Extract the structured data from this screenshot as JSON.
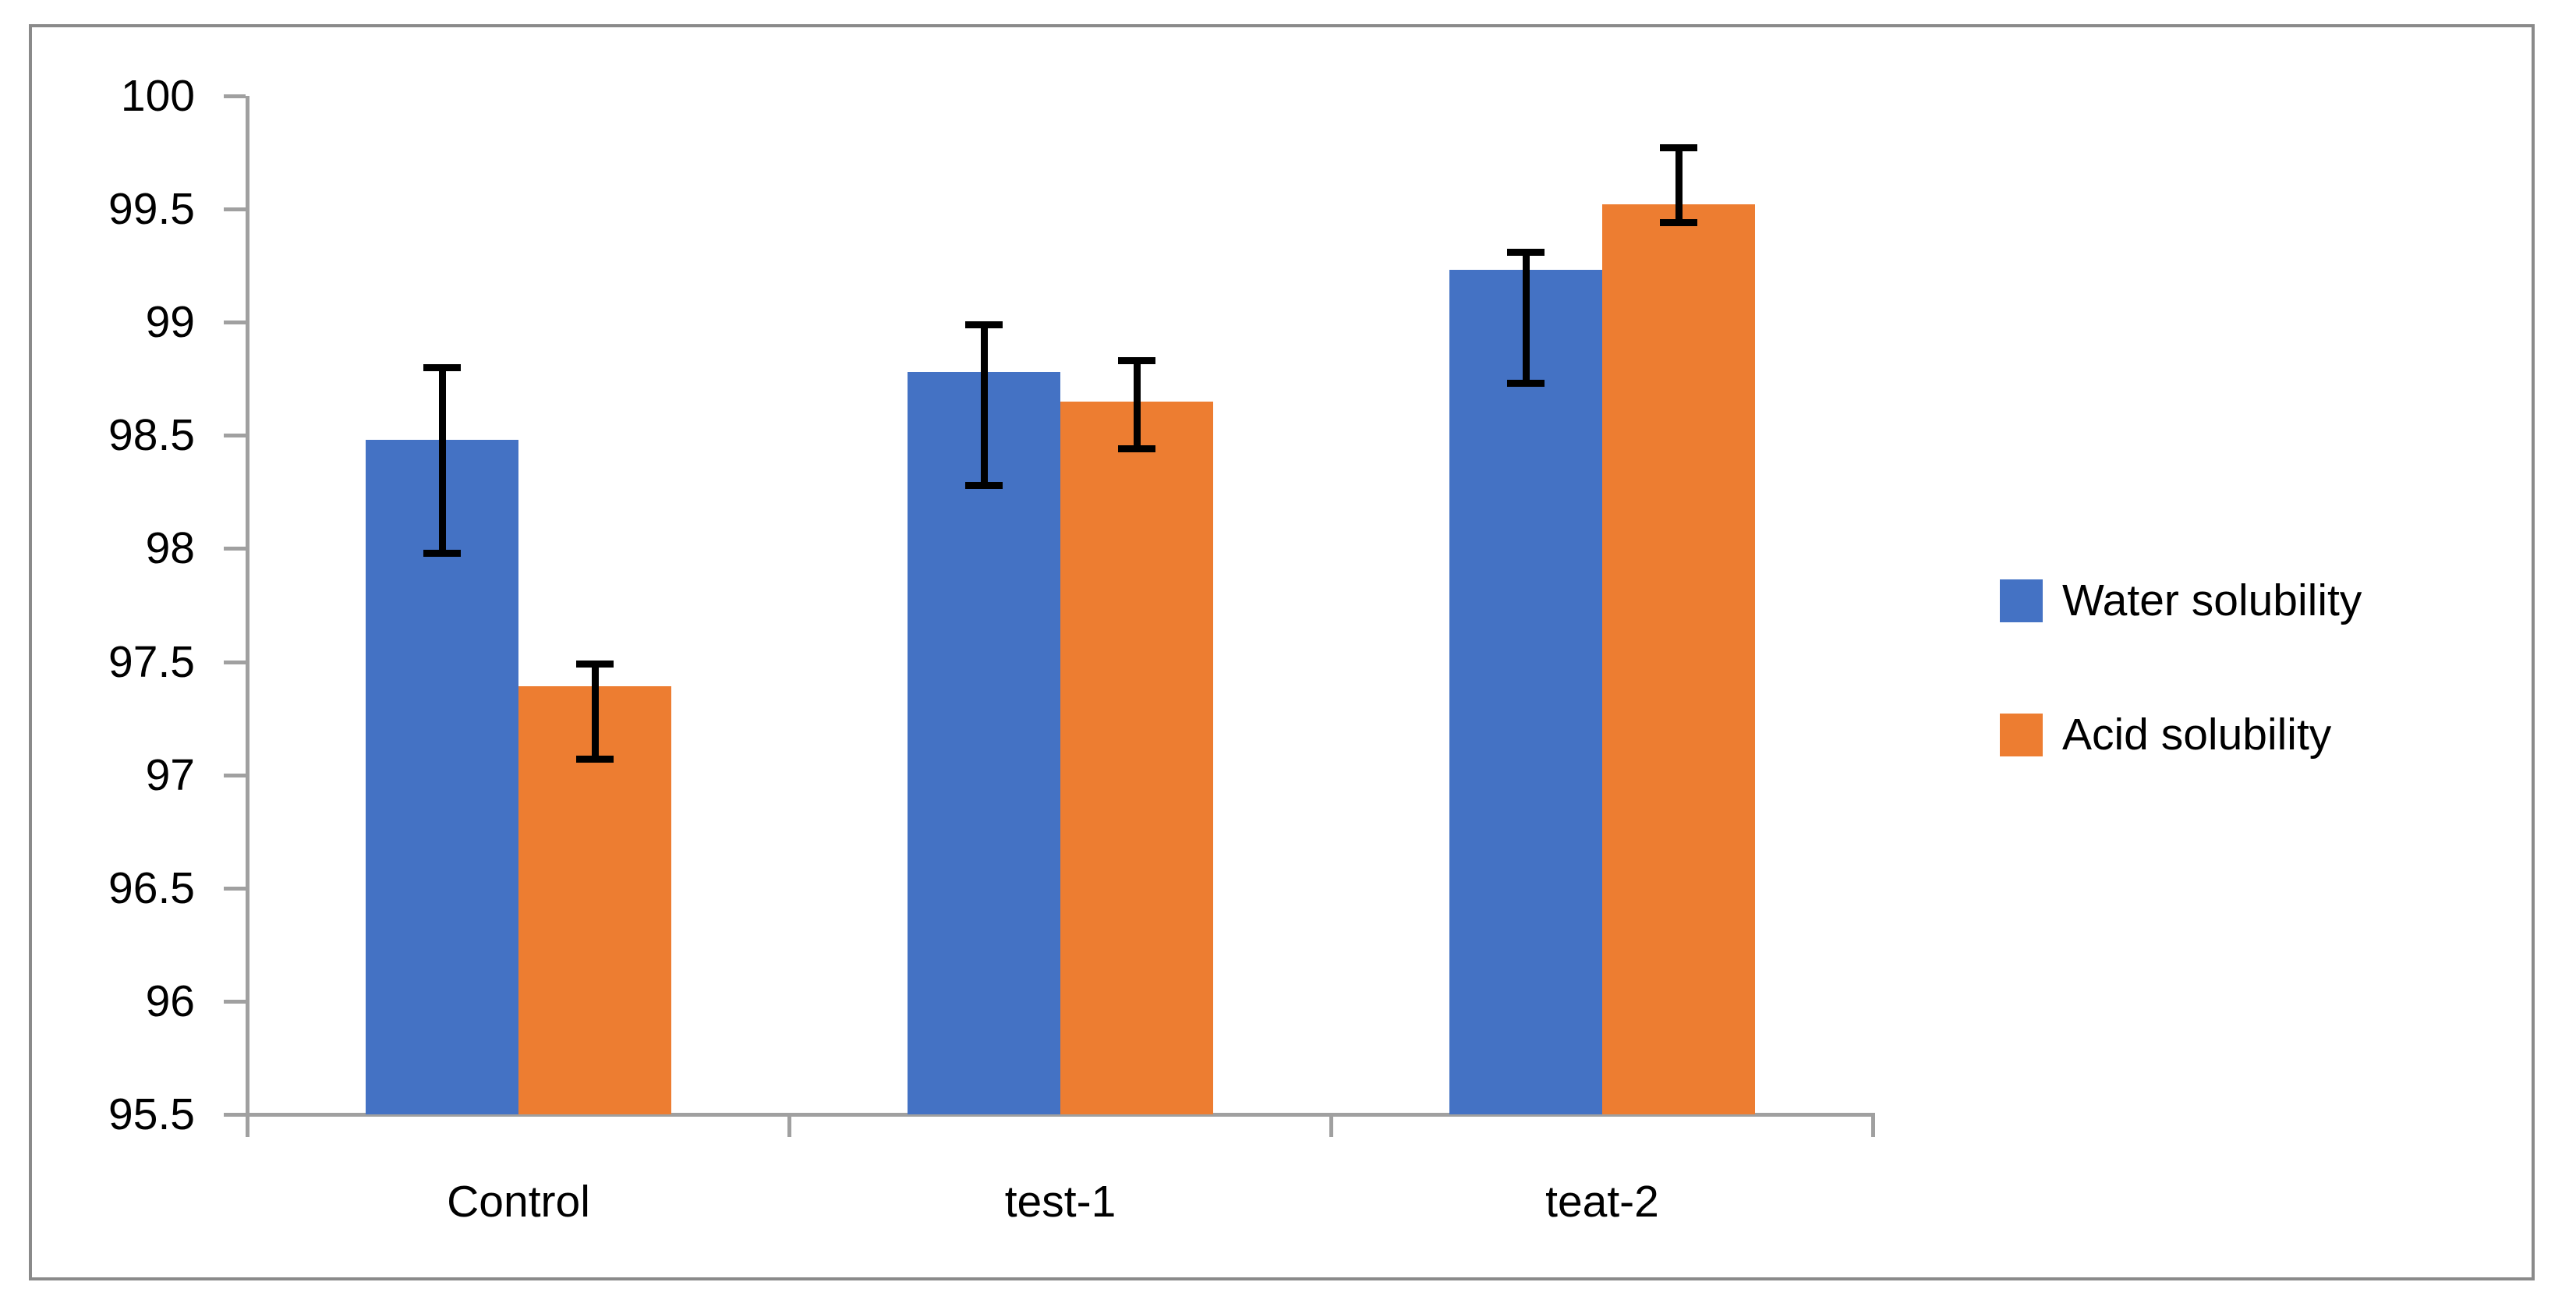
{
  "chart_data": {
    "type": "bar",
    "title": "",
    "xlabel": "",
    "ylabel": "",
    "categories": [
      "Control",
      "test-1",
      "teat-2"
    ],
    "series": [
      {
        "name": "Water solubility",
        "color": "#4472C4",
        "values": [
          98.48,
          98.78,
          99.23
        ],
        "error_low": [
          97.98,
          98.28,
          98.73
        ],
        "error_high": [
          98.8,
          98.99,
          99.31
        ]
      },
      {
        "name": "Acid solubility",
        "color": "#ED7D31",
        "values": [
          97.39,
          98.65,
          99.52
        ],
        "error_low": [
          97.07,
          98.44,
          99.44
        ],
        "error_high": [
          97.49,
          98.83,
          99.77
        ]
      }
    ],
    "ylim": [
      95.5,
      100
    ],
    "ytick_step": 0.5,
    "ytick_labels": [
      "100",
      "99.5",
      "99",
      "98.5",
      "98",
      "97.5",
      "97",
      "96.5",
      "96",
      "95.5"
    ],
    "grid": false,
    "error_bars": true,
    "legend_position": "right"
  },
  "styles": {
    "background": "#FFFFFF",
    "frame_border_color": "#8A8A8A",
    "axis_color": "#A0A0A0",
    "error_bar_color": "#000000",
    "text_color": "#000000"
  }
}
